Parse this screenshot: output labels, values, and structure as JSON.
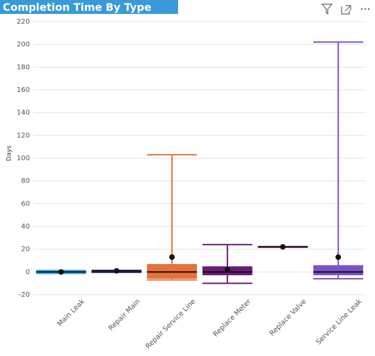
{
  "chart_data": {
    "type": "box",
    "title": "Completion Time By Type",
    "y_label": "Days",
    "categories": [
      "Main Leak",
      "Repair Main",
      "Repair Service Line",
      "Replace Meter",
      "Replace Valve",
      "Service Line Leak"
    ],
    "min": [
      -1,
      0,
      -7,
      -10,
      22,
      -6
    ],
    "q1": [
      -1,
      0,
      -5,
      -2,
      22,
      -2
    ],
    "median": [
      0,
      1,
      0,
      0,
      22,
      0
    ],
    "q3": [
      1,
      1,
      6,
      4,
      22,
      5
    ],
    "max": [
      1,
      1,
      103,
      24,
      22,
      202
    ],
    "mean": [
      0,
      1,
      13,
      2,
      22,
      13
    ],
    "colors": [
      "#3fa9e0",
      "#1a2a6c",
      "#e8703a",
      "#6a1b78",
      "#d6409f",
      "#7b52c9"
    ],
    "ylim": [
      -20,
      220
    ],
    "yticks": [
      -20,
      0,
      20,
      40,
      60,
      80,
      100,
      120,
      140,
      160,
      180,
      200,
      220
    ],
    "grid": true
  }
}
